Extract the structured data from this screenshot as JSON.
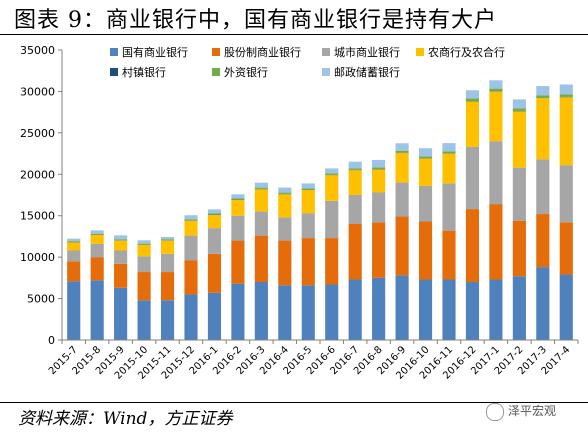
{
  "header": {
    "title": "图表 9：商业银行中，国有商业银行是持有大户"
  },
  "footer": {
    "source": "资料来源：Wind，方正证券",
    "watermark": "泽平宏观"
  },
  "chart_data": {
    "type": "bar",
    "stacked": true,
    "title": "",
    "xlabel": "",
    "ylabel": "",
    "ylim": [
      0,
      35000
    ],
    "yticks": [
      0,
      5000,
      10000,
      15000,
      20000,
      25000,
      30000,
      35000
    ],
    "grid": false,
    "legend_position": "top",
    "categories": [
      "2015-7",
      "2015-8",
      "2015-9",
      "2015-10",
      "2015-11",
      "2015-12",
      "2016-1",
      "2016-2",
      "2016-3",
      "2016-4",
      "2016-5",
      "2016-6",
      "2016-7",
      "2016-8",
      "2016-9",
      "2016-10",
      "2016-11",
      "2016-12",
      "2017-1",
      "2017-2",
      "2017-3",
      "2017-4"
    ],
    "series": [
      {
        "name": "国有商业银行",
        "color": "#4f81bd",
        "values": [
          7100,
          7200,
          6300,
          4800,
          4800,
          5500,
          5700,
          6800,
          7000,
          6600,
          6600,
          6700,
          7300,
          7500,
          7800,
          7300,
          7300,
          7000,
          7300,
          7700,
          8800,
          7900
        ]
      },
      {
        "name": "股份制商业银行",
        "color": "#e46c0a",
        "values": [
          2400,
          2800,
          2900,
          3400,
          3400,
          4100,
          4700,
          5200,
          5600,
          5400,
          5700,
          5600,
          6700,
          6700,
          7100,
          7000,
          5900,
          8800,
          9100,
          6700,
          6400,
          6300
        ]
      },
      {
        "name": "城市商业银行",
        "color": "#a6a6a6",
        "values": [
          1300,
          1600,
          1600,
          1900,
          2200,
          3000,
          3100,
          3000,
          2900,
          2800,
          3000,
          4500,
          3500,
          3600,
          4100,
          4300,
          5700,
          7500,
          7600,
          6400,
          6600,
          6900
        ]
      },
      {
        "name": "农商行及农合行",
        "color": "#ffc000",
        "values": [
          1000,
          1100,
          1200,
          1400,
          1600,
          1800,
          1600,
          1900,
          2700,
          2800,
          2800,
          3100,
          3000,
          2800,
          3600,
          3300,
          3600,
          5500,
          6000,
          6800,
          7400,
          8200
        ]
      },
      {
        "name": "村镇银行",
        "color": "#1f4e79",
        "values": [
          30,
          30,
          30,
          30,
          30,
          40,
          40,
          40,
          40,
          40,
          40,
          40,
          40,
          40,
          40,
          40,
          40,
          40,
          40,
          40,
          40,
          40
        ]
      },
      {
        "name": "外资银行",
        "color": "#70ad47",
        "values": [
          100,
          100,
          100,
          100,
          100,
          120,
          130,
          140,
          150,
          150,
          160,
          170,
          180,
          190,
          200,
          200,
          220,
          300,
          300,
          300,
          300,
          300
        ]
      },
      {
        "name": "邮政储蓄银行",
        "color": "#9dc3e6",
        "values": [
          300,
          400,
          500,
          400,
          300,
          500,
          500,
          500,
          600,
          600,
          600,
          600,
          800,
          900,
          900,
          1000,
          1000,
          1000,
          1000,
          1100,
          1100,
          1200
        ]
      }
    ]
  }
}
